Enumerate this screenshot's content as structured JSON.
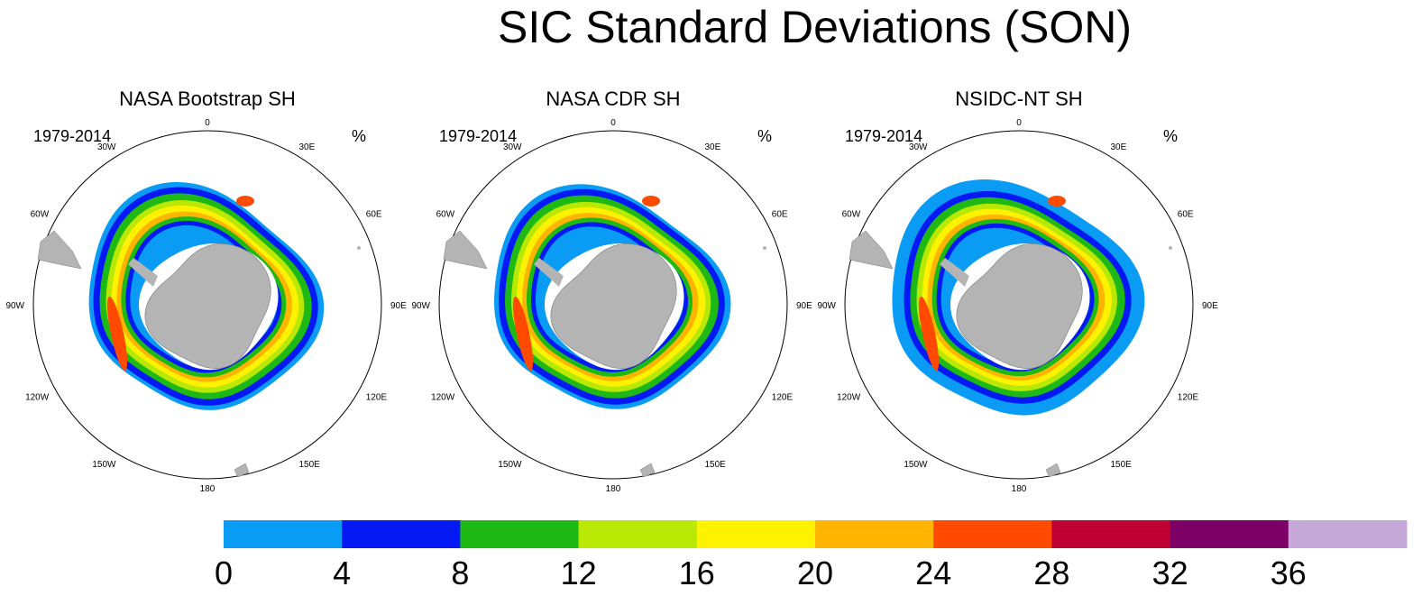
{
  "figure": {
    "title": "SIC Standard Deviations (SON)"
  },
  "chart_data": [
    {
      "type": "heatmap",
      "title": "NASA Bootstrap SH",
      "left_label": "1979-2014",
      "right_label": "%",
      "longitude_labels": [
        "0",
        "30E",
        "60E",
        "90E",
        "120E",
        "150E",
        "180",
        "150W",
        "120W",
        "90W",
        "60W",
        "30W"
      ]
    },
    {
      "type": "heatmap",
      "title": "NASA CDR SH",
      "left_label": "1979-2014",
      "right_label": "%",
      "longitude_labels": [
        "0",
        "30E",
        "60E",
        "90E",
        "120E",
        "150E",
        "180",
        "150W",
        "120W",
        "90W",
        "60W",
        "30W"
      ]
    },
    {
      "type": "heatmap",
      "title": "NSIDC-NT SH",
      "left_label": "1979-2014",
      "right_label": "%",
      "longitude_labels": [
        "0",
        "30E",
        "60E",
        "90E",
        "120E",
        "150E",
        "180",
        "150W",
        "120W",
        "90W",
        "60W",
        "30W"
      ]
    }
  ],
  "colorbar": {
    "ticks": [
      "0",
      "4",
      "8",
      "12",
      "16",
      "20",
      "24",
      "28",
      "32",
      "36"
    ],
    "colors": [
      "#0a9bf5",
      "#0519f5",
      "#1eb914",
      "#b9e805",
      "#fff200",
      "#ffb400",
      "#ff4a00",
      "#be0032",
      "#7d0066",
      "#c6a8d8"
    ]
  },
  "colors": {
    "land": "#b4b4b4",
    "ring": "#000000"
  }
}
